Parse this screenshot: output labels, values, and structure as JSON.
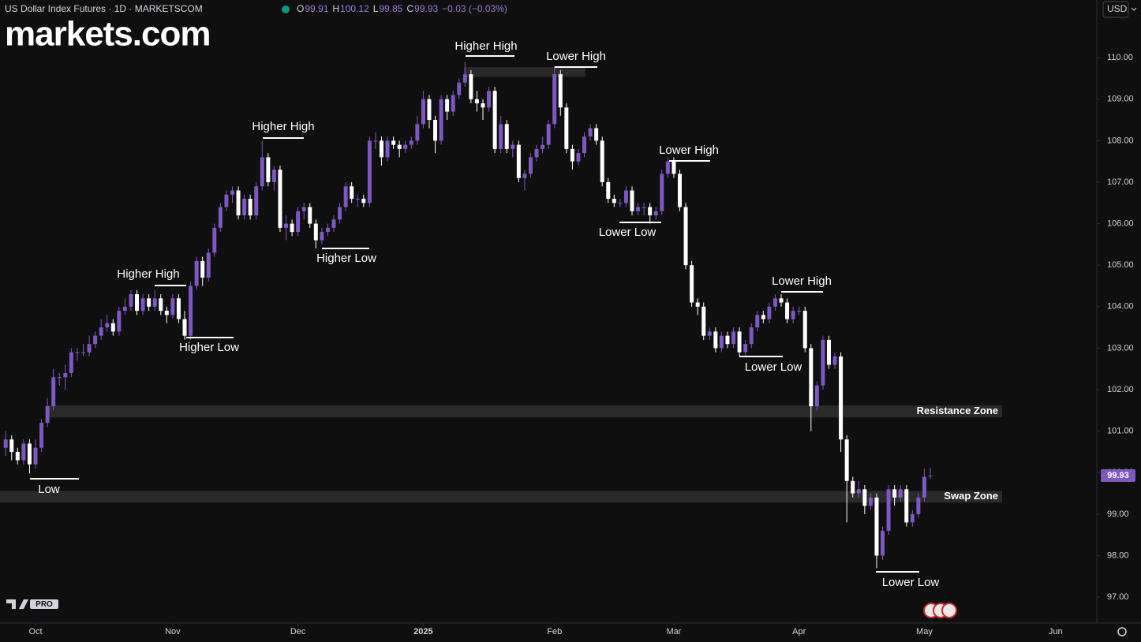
{
  "chart_data": {
    "type": "candlestick",
    "symbol": "US Dollar Index Futures · 1D · MARKETSCOM",
    "ohlc_labels": [
      "O",
      "H",
      "L",
      "C"
    ],
    "change_label": "−0.03 (−0.03%)",
    "currency": "USD",
    "logo": "markets.com",
    "watermark": "PRO",
    "up_color": "#7e57c2",
    "down_color": "#ffffff",
    "zone_color": "#2a2a2a",
    "ylim": [
      96.47,
      111.39
    ],
    "yticks": [
      {
        "value": 97,
        "label": "97.00"
      },
      {
        "value": 98,
        "label": "98.00"
      },
      {
        "value": 99,
        "label": "99.00"
      },
      {
        "value": 100,
        "label": "100.00"
      },
      {
        "value": 101,
        "label": "101.00"
      },
      {
        "value": 102,
        "label": "102.00"
      },
      {
        "value": 103,
        "label": "103.00"
      },
      {
        "value": 104,
        "label": "104.00"
      },
      {
        "value": 105,
        "label": "105.00"
      },
      {
        "value": 106,
        "label": "106.00"
      },
      {
        "value": 107,
        "label": "107.00"
      },
      {
        "value": 108,
        "label": "108.00"
      },
      {
        "value": 109,
        "label": "109.00"
      },
      {
        "value": 110,
        "label": "110.00"
      }
    ],
    "xticks": [
      {
        "value": 5,
        "label": "Oct"
      },
      {
        "value": 28,
        "label": "Nov"
      },
      {
        "value": 49,
        "label": "Dec"
      },
      {
        "value": 70,
        "label": "2025"
      },
      {
        "value": 92,
        "label": "Feb"
      },
      {
        "value": 112,
        "label": "Mar"
      },
      {
        "value": 133,
        "label": "Apr"
      },
      {
        "value": 154,
        "label": "May"
      },
      {
        "value": 176,
        "label": "Jun"
      }
    ],
    "zones": [
      {
        "label": "Resistance Zone",
        "range": [
          101.33,
          101.62
        ]
      },
      {
        "label": "Swap Zone",
        "range": [
          99.28,
          99.56
        ]
      },
      {
        "range": [
          109.54,
          109.77
        ]
      }
    ],
    "annotations": [
      "Low",
      "Higher High",
      "Higher Low",
      "Higher High",
      "Higher Low",
      "Higher High",
      "Lower High",
      "Lower High",
      "Lower Low",
      "Lower High",
      "Lower Low",
      "Lower Low"
    ],
    "candles": [
      [
        100.6,
        101.0,
        100.4,
        100.8
      ],
      [
        100.8,
        100.9,
        100.3,
        100.5
      ],
      [
        100.5,
        100.6,
        100.2,
        100.3
      ],
      [
        100.3,
        100.8,
        100.2,
        100.7
      ],
      [
        100.7,
        100.8,
        99.98,
        100.2
      ],
      [
        100.2,
        100.8,
        100.1,
        100.6
      ],
      [
        100.6,
        101.3,
        100.5,
        101.2
      ],
      [
        101.2,
        101.8,
        101.1,
        101.6
      ],
      [
        101.6,
        102.5,
        101.5,
        102.3
      ],
      [
        102.3,
        102.4,
        102.1,
        102.3
      ],
      [
        102.3,
        102.6,
        102.0,
        102.4
      ],
      [
        102.4,
        103.0,
        102.3,
        102.9
      ],
      [
        102.9,
        103.0,
        102.7,
        102.9
      ],
      [
        102.9,
        103.1,
        102.8,
        102.9
      ],
      [
        102.9,
        103.3,
        102.8,
        103.1
      ],
      [
        103.1,
        103.4,
        103.0,
        103.3
      ],
      [
        103.3,
        103.7,
        103.2,
        103.5
      ],
      [
        103.5,
        103.8,
        103.4,
        103.6
      ],
      [
        103.6,
        103.7,
        103.3,
        103.4
      ],
      [
        103.4,
        104.0,
        103.3,
        103.9
      ],
      [
        103.9,
        104.2,
        103.8,
        104.0
      ],
      [
        104.0,
        104.4,
        103.9,
        104.3
      ],
      [
        104.3,
        104.4,
        103.8,
        103.9
      ],
      [
        103.9,
        104.3,
        103.8,
        104.2
      ],
      [
        104.2,
        104.3,
        103.9,
        104.0
      ],
      [
        104.0,
        104.4,
        103.9,
        104.2
      ],
      [
        104.2,
        104.3,
        103.8,
        103.9
      ],
      [
        103.9,
        104.0,
        103.6,
        103.8
      ],
      [
        103.8,
        104.3,
        103.7,
        104.2
      ],
      [
        104.2,
        104.3,
        103.6,
        103.7
      ],
      [
        103.7,
        103.9,
        103.2,
        103.3
      ],
      [
        103.3,
        104.6,
        103.2,
        104.5
      ],
      [
        104.5,
        105.2,
        104.4,
        105.1
      ],
      [
        105.1,
        105.2,
        104.5,
        104.7
      ],
      [
        104.7,
        105.4,
        104.6,
        105.3
      ],
      [
        105.3,
        106.0,
        105.2,
        105.9
      ],
      [
        105.9,
        106.5,
        105.8,
        106.4
      ],
      [
        106.4,
        106.8,
        106.3,
        106.7
      ],
      [
        106.7,
        106.9,
        106.5,
        106.8
      ],
      [
        106.8,
        106.9,
        106.1,
        106.2
      ],
      [
        106.2,
        106.7,
        106.1,
        106.6
      ],
      [
        106.6,
        106.7,
        106.1,
        106.2
      ],
      [
        106.2,
        107.0,
        106.1,
        106.9
      ],
      [
        106.9,
        108.0,
        106.8,
        107.6
      ],
      [
        107.6,
        107.7,
        106.9,
        107.0
      ],
      [
        107.0,
        107.4,
        106.8,
        107.3
      ],
      [
        107.3,
        107.4,
        105.8,
        105.9
      ],
      [
        105.9,
        106.2,
        105.6,
        106.0
      ],
      [
        106.0,
        106.1,
        105.7,
        105.8
      ],
      [
        105.8,
        106.4,
        105.7,
        106.3
      ],
      [
        106.3,
        106.5,
        106.1,
        106.4
      ],
      [
        106.4,
        106.5,
        105.9,
        106.0
      ],
      [
        106.0,
        106.1,
        105.4,
        105.6
      ],
      [
        105.6,
        105.9,
        105.5,
        105.8
      ],
      [
        105.8,
        106.0,
        105.7,
        105.9
      ],
      [
        105.9,
        106.2,
        105.8,
        106.1
      ],
      [
        106.1,
        106.5,
        106.0,
        106.4
      ],
      [
        106.4,
        107.0,
        106.3,
        106.9
      ],
      [
        106.9,
        107.0,
        106.5,
        106.6
      ],
      [
        106.6,
        106.7,
        106.4,
        106.6
      ],
      [
        106.6,
        106.7,
        106.4,
        106.5
      ],
      [
        106.5,
        108.1,
        106.4,
        108.0
      ],
      [
        108.0,
        108.2,
        107.8,
        108.0
      ],
      [
        108.0,
        108.1,
        107.4,
        107.6
      ],
      [
        107.6,
        108.1,
        107.5,
        108.0
      ],
      [
        108.0,
        108.1,
        107.8,
        107.9
      ],
      [
        107.9,
        108.0,
        107.6,
        107.8
      ],
      [
        107.8,
        108.0,
        107.7,
        107.9
      ],
      [
        107.9,
        108.1,
        107.8,
        108.0
      ],
      [
        108.0,
        108.6,
        107.9,
        108.4
      ],
      [
        108.4,
        109.2,
        108.3,
        109.0
      ],
      [
        109.0,
        109.1,
        108.3,
        108.5
      ],
      [
        108.5,
        108.6,
        107.7,
        108.0
      ],
      [
        108.0,
        109.1,
        107.9,
        109.0
      ],
      [
        109.0,
        109.1,
        108.5,
        108.7
      ],
      [
        108.7,
        109.2,
        108.6,
        109.1
      ],
      [
        109.1,
        109.5,
        109.0,
        109.4
      ],
      [
        109.4,
        109.9,
        109.3,
        109.6
      ],
      [
        109.6,
        109.7,
        108.9,
        109.0
      ],
      [
        109.0,
        109.2,
        108.7,
        108.9
      ],
      [
        108.9,
        109.0,
        108.5,
        108.8
      ],
      [
        108.8,
        109.3,
        108.7,
        109.2
      ],
      [
        109.2,
        109.3,
        107.7,
        107.8
      ],
      [
        107.8,
        108.6,
        107.7,
        108.4
      ],
      [
        108.4,
        108.5,
        107.7,
        107.8
      ],
      [
        107.8,
        108.0,
        107.6,
        107.9
      ],
      [
        107.9,
        108.0,
        107.0,
        107.1
      ],
      [
        107.1,
        107.3,
        106.8,
        107.2
      ],
      [
        107.2,
        107.7,
        107.1,
        107.6
      ],
      [
        107.6,
        107.9,
        107.5,
        107.8
      ],
      [
        107.8,
        108.1,
        107.7,
        107.9
      ],
      [
        107.9,
        108.5,
        107.8,
        108.4
      ],
      [
        108.4,
        109.8,
        108.3,
        109.6
      ],
      [
        109.6,
        109.7,
        108.6,
        108.8
      ],
      [
        108.8,
        108.9,
        107.7,
        107.8
      ],
      [
        107.8,
        107.9,
        107.3,
        107.5
      ],
      [
        107.5,
        107.8,
        107.4,
        107.7
      ],
      [
        107.7,
        108.2,
        107.6,
        108.1
      ],
      [
        108.1,
        108.4,
        108.0,
        108.3
      ],
      [
        108.3,
        108.4,
        107.9,
        108.0
      ],
      [
        108.0,
        108.1,
        106.9,
        107.0
      ],
      [
        107.0,
        107.1,
        106.5,
        106.6
      ],
      [
        106.6,
        106.7,
        106.4,
        106.5
      ],
      [
        106.5,
        106.6,
        106.4,
        106.5
      ],
      [
        106.5,
        106.9,
        106.4,
        106.8
      ],
      [
        106.8,
        106.9,
        106.2,
        106.3
      ],
      [
        106.3,
        106.5,
        106.2,
        106.4
      ],
      [
        106.4,
        106.5,
        106.2,
        106.4
      ],
      [
        106.4,
        106.5,
        106.0,
        106.2
      ],
      [
        106.2,
        106.4,
        106.1,
        106.3
      ],
      [
        106.3,
        107.3,
        106.2,
        107.2
      ],
      [
        107.2,
        107.6,
        107.1,
        107.5
      ],
      [
        107.5,
        107.6,
        107.1,
        107.2
      ],
      [
        107.2,
        107.3,
        106.3,
        106.4
      ],
      [
        106.4,
        106.5,
        104.9,
        105.0
      ],
      [
        105.0,
        105.1,
        104.0,
        104.1
      ],
      [
        104.1,
        104.2,
        103.8,
        104.0
      ],
      [
        104.0,
        104.1,
        103.2,
        103.3
      ],
      [
        103.3,
        103.5,
        103.2,
        103.4
      ],
      [
        103.4,
        103.5,
        102.9,
        103.0
      ],
      [
        103.0,
        103.4,
        102.9,
        103.3
      ],
      [
        103.3,
        103.4,
        103.0,
        103.1
      ],
      [
        103.1,
        103.5,
        103.0,
        103.4
      ],
      [
        103.4,
        103.5,
        102.8,
        102.9
      ],
      [
        102.9,
        103.2,
        102.8,
        103.1
      ],
      [
        103.1,
        103.6,
        103.0,
        103.5
      ],
      [
        103.5,
        103.9,
        103.4,
        103.8
      ],
      [
        103.8,
        103.9,
        103.6,
        103.7
      ],
      [
        103.7,
        104.1,
        103.6,
        104.0
      ],
      [
        104.0,
        104.3,
        103.9,
        104.2
      ],
      [
        104.2,
        104.3,
        104.0,
        104.1
      ],
      [
        104.1,
        104.2,
        103.6,
        103.7
      ],
      [
        103.7,
        104.0,
        103.6,
        103.9
      ],
      [
        103.9,
        104.0,
        103.8,
        103.9
      ],
      [
        103.9,
        104.0,
        102.9,
        103.0
      ],
      [
        103.0,
        103.1,
        101.0,
        101.6
      ],
      [
        101.6,
        102.2,
        101.5,
        102.1
      ],
      [
        102.1,
        103.3,
        102.0,
        103.2
      ],
      [
        103.2,
        103.3,
        102.5,
        102.6
      ],
      [
        102.6,
        102.9,
        102.5,
        102.8
      ],
      [
        102.8,
        102.9,
        100.5,
        100.8
      ],
      [
        100.8,
        100.9,
        98.8,
        99.8
      ],
      [
        99.8,
        99.9,
        99.4,
        99.5
      ],
      [
        99.5,
        99.8,
        99.4,
        99.6
      ],
      [
        99.6,
        99.7,
        99.0,
        99.2
      ],
      [
        99.2,
        99.5,
        99.1,
        99.4
      ],
      [
        99.4,
        99.5,
        97.7,
        98.0
      ],
      [
        98.0,
        98.7,
        97.9,
        98.6
      ],
      [
        98.6,
        99.7,
        98.5,
        99.6
      ],
      [
        99.6,
        99.7,
        99.2,
        99.4
      ],
      [
        99.4,
        99.7,
        99.3,
        99.6
      ],
      [
        99.6,
        99.7,
        98.7,
        98.8
      ],
      [
        98.8,
        99.1,
        98.7,
        99.0
      ],
      [
        99.0,
        99.5,
        98.9,
        99.4
      ],
      [
        99.4,
        100.1,
        99.3,
        99.9
      ],
      [
        99.91,
        100.12,
        99.85,
        99.93
      ]
    ]
  }
}
